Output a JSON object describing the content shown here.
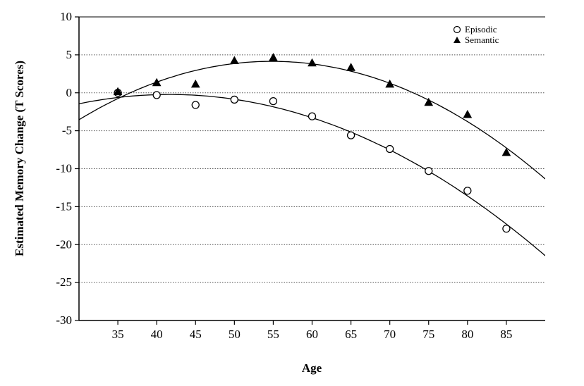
{
  "chart_data": {
    "type": "scatter",
    "xlabel": "Age",
    "ylabel": "Estimated Memory Change (T Scores)",
    "xlim": [
      30,
      90
    ],
    "ylim": [
      -30,
      10
    ],
    "xticks": [
      35,
      40,
      45,
      50,
      55,
      60,
      65,
      70,
      75,
      80,
      85
    ],
    "yticks": [
      10,
      5,
      0,
      -5,
      -10,
      -15,
      -20,
      -25,
      -30
    ],
    "grid": "horizontal dotted",
    "legend_position": "top-right",
    "x": [
      35,
      40,
      45,
      50,
      55,
      60,
      65,
      70,
      75,
      80,
      85
    ],
    "series": [
      {
        "name": "Episodic",
        "marker": "open-circle",
        "values": [
          0.0,
          -0.3,
          -1.6,
          -0.9,
          -1.1,
          -3.1,
          -5.6,
          -7.4,
          -10.3,
          -12.9,
          -17.9
        ],
        "fit": "quadratic"
      },
      {
        "name": "Semantic",
        "marker": "filled-triangle",
        "values": [
          0.1,
          1.3,
          1.1,
          4.2,
          4.6,
          3.9,
          3.3,
          1.1,
          -1.3,
          -2.9,
          -7.9
        ],
        "fit": "quadratic"
      }
    ]
  }
}
